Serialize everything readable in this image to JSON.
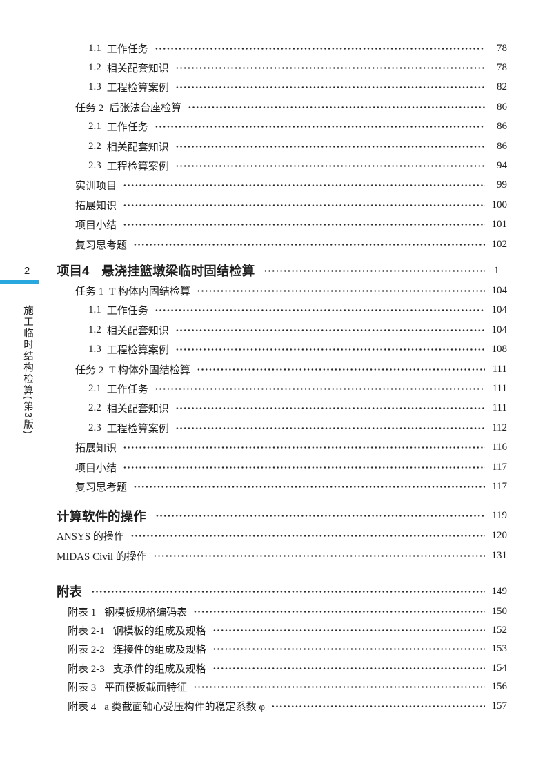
{
  "page": {
    "background": "#ffffff",
    "text_color": "#1e1e1e",
    "accent_color": "#29a8e0"
  },
  "sidebar": {
    "page_number": "2",
    "book_title": "施工临时结构检算(第3版)"
  },
  "toc": {
    "sections": [
      {
        "heading": null,
        "rows": [
          {
            "level": "sub",
            "num": "1.1",
            "label": "工作任务",
            "page": "78"
          },
          {
            "level": "sub",
            "num": "1.2",
            "label": "相关配套知识",
            "page": "78"
          },
          {
            "level": "sub",
            "num": "1.3",
            "label": "工程检算案例",
            "page": "82"
          },
          {
            "level": "task",
            "num": "任务 2",
            "label": "后张法台座检算",
            "page": "86"
          },
          {
            "level": "sub",
            "num": "2.1",
            "label": "工作任务",
            "page": "86"
          },
          {
            "level": "sub",
            "num": "2.2",
            "label": "相关配套知识",
            "page": "86"
          },
          {
            "level": "sub",
            "num": "2.3",
            "label": "工程检算案例",
            "page": "94"
          },
          {
            "level": "task",
            "num": "",
            "label": "实训项目",
            "page": "99"
          },
          {
            "level": "task",
            "num": "",
            "label": "拓展知识",
            "page": "100"
          },
          {
            "level": "task",
            "num": "",
            "label": "项目小结",
            "page": "101"
          },
          {
            "level": "task",
            "num": "",
            "label": "复习思考题",
            "page": "102"
          }
        ]
      },
      {
        "heading": {
          "num": "项目4",
          "label": "悬浇挂篮墩梁临时固结检算",
          "page": "1"
        },
        "rows": [
          {
            "level": "task",
            "num": "任务 1",
            "label": "T 构体内固结检算",
            "page": "104"
          },
          {
            "level": "sub",
            "num": "1.1",
            "label": "工作任务",
            "page": "104"
          },
          {
            "level": "sub",
            "num": "1.2",
            "label": "相关配套知识",
            "page": "104"
          },
          {
            "level": "sub",
            "num": "1.3",
            "label": "工程检算案例",
            "page": "108"
          },
          {
            "level": "task",
            "num": "任务 2",
            "label": "T 构体外固结检算",
            "page": "111"
          },
          {
            "level": "sub",
            "num": "2.1",
            "label": "工作任务",
            "page": "111"
          },
          {
            "level": "sub",
            "num": "2.2",
            "label": "相关配套知识",
            "page": "111"
          },
          {
            "level": "sub",
            "num": "2.3",
            "label": "工程检算案例",
            "page": "112"
          },
          {
            "level": "task",
            "num": "",
            "label": "拓展知识",
            "page": "116"
          },
          {
            "level": "task",
            "num": "",
            "label": "项目小结",
            "page": "117"
          },
          {
            "level": "task",
            "num": "",
            "label": "复习思考题",
            "page": "117"
          }
        ]
      },
      {
        "heading": {
          "num": "",
          "label": "计算软件的操作",
          "page": "119"
        },
        "rows": [
          {
            "level": "top",
            "num": "",
            "label": "ANSYS 的操作",
            "page": "120"
          },
          {
            "level": "top",
            "num": "",
            "label": "MIDAS Civil 的操作",
            "page": "131"
          }
        ]
      },
      {
        "heading": {
          "num": "",
          "label": "附表",
          "page": "149"
        },
        "rows": [
          {
            "level": "appendix",
            "num": "附表 1",
            "label": "钢模板规格编码表",
            "page": "150"
          },
          {
            "level": "appendix",
            "num": "附表 2-1",
            "label": "钢模板的组成及规格",
            "page": "152"
          },
          {
            "level": "appendix",
            "num": "附表 2-2",
            "label": "连接件的组成及规格",
            "page": "153"
          },
          {
            "level": "appendix",
            "num": "附表 2-3",
            "label": "支承件的组成及规格",
            "page": "154"
          },
          {
            "level": "appendix",
            "num": "附表 3",
            "label": "平面模板截面特征",
            "page": "156"
          },
          {
            "level": "appendix",
            "num": "附表 4",
            "label": "a 类截面轴心受压构件的稳定系数 φ",
            "page": "157"
          }
        ]
      }
    ]
  }
}
